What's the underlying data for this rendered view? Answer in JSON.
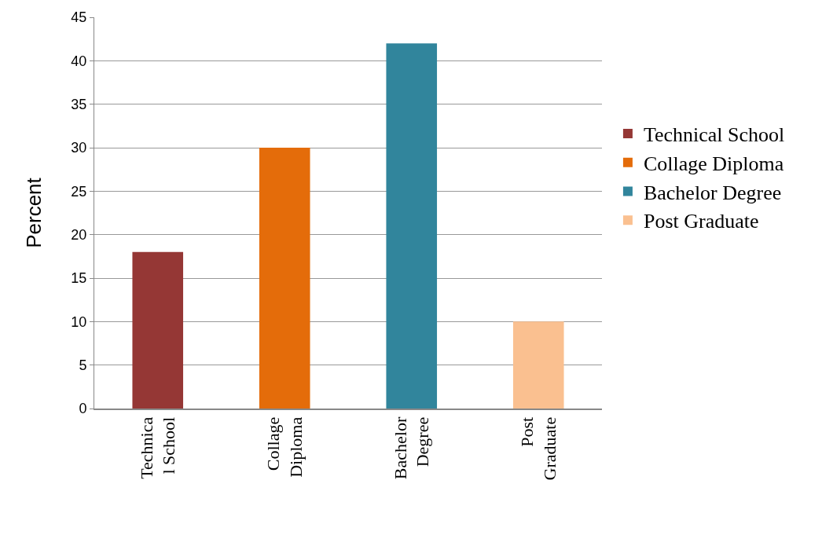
{
  "chart_data": {
    "type": "bar",
    "ylabel": "Percent",
    "categories": [
      "Technica\nl School",
      "Collage\nDiploma",
      "Bachelor\nDegree",
      "Post\nGraduate"
    ],
    "series": [
      {
        "name": "Technical School",
        "color": "#953735",
        "values": [
          18,
          null,
          null,
          null
        ]
      },
      {
        "name": "Collage Diploma",
        "color": "#e46c0a",
        "values": [
          null,
          30,
          null,
          null
        ]
      },
      {
        "name": "Bachelor Degree",
        "color": "#31859c",
        "values": [
          null,
          null,
          42,
          null
        ]
      },
      {
        "name": "Post Graduate",
        "color": "#fac090",
        "values": [
          null,
          null,
          null,
          10
        ]
      }
    ],
    "ylim": [
      0,
      45
    ],
    "yticks": [
      0,
      5,
      10,
      15,
      20,
      25,
      30,
      35,
      40,
      45
    ],
    "grid": "y",
    "legend": "right"
  }
}
